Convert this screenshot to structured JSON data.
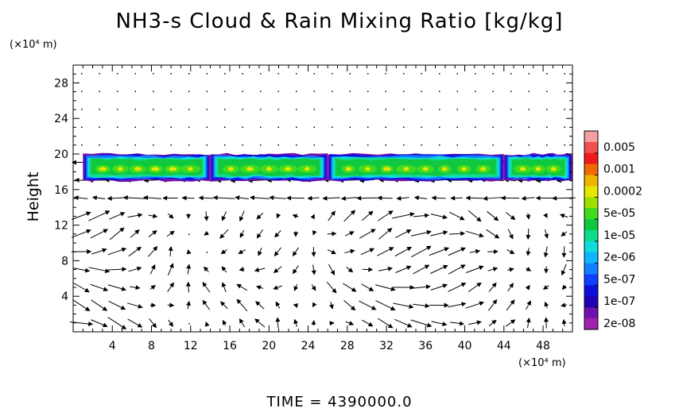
{
  "chart_data": {
    "type": "heatmap",
    "title": "NH3-s Cloud & Rain Mixing Ratio [kg/kg]",
    "ylabel": "Height",
    "x_unit": "(×10⁴ m)",
    "y_unit": "(×10⁴ m)",
    "footer": "TIME = 4390000.0",
    "xlim": [
      0,
      51
    ],
    "ylim": [
      0,
      30
    ],
    "x_ticks": [
      4,
      8,
      12,
      16,
      20,
      24,
      28,
      32,
      36,
      40,
      44,
      48
    ],
    "x_tick_labels": [
      "4",
      "8",
      "12",
      "16",
      "20",
      "24",
      "28",
      "32",
      "36",
      "40",
      "44",
      "48"
    ],
    "y_ticks": [
      4,
      8,
      12,
      16,
      20,
      24,
      28
    ],
    "y_tick_labels": [
      "4",
      "8",
      "12",
      "16",
      "20",
      "24",
      "28"
    ],
    "colorbar": {
      "labels": [
        "0.005",
        "0.001",
        "0.0002",
        "5e-05",
        "1e-05",
        "2e-06",
        "5e-07",
        "1e-07",
        "2e-08"
      ],
      "colors": [
        "#f4a0a0",
        "#f25050",
        "#ee1a1a",
        "#f06a00",
        "#f0b400",
        "#e6e600",
        "#a0e000",
        "#40dc20",
        "#10c840",
        "#10dc90",
        "#10dcdc",
        "#10b4ff",
        "#1080ff",
        "#1040ff",
        "#1010dc",
        "#2000b0",
        "#7010b0",
        "#a020b0"
      ]
    },
    "cloud_layer": {
      "base_height": 17,
      "top_height": 20,
      "segments": [
        {
          "x": [
            1,
            14
          ],
          "level": "1e-05"
        },
        {
          "x": [
            14,
            26
          ],
          "level": "1e-05"
        },
        {
          "x": [
            26,
            44
          ],
          "level": "2e-06"
        },
        {
          "x": [
            44,
            51
          ],
          "level": "1e-05"
        }
      ]
    }
  }
}
